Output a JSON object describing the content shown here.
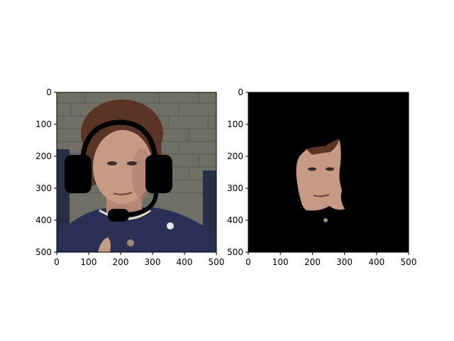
{
  "figure": {
    "background": "#ffffff",
    "panels": [
      {
        "id": "left",
        "content": "photo of a woman wearing a drawn headset overlay",
        "xticks": [
          "0",
          "100",
          "200",
          "300",
          "400",
          "500"
        ],
        "yticks": [
          "0",
          "100",
          "200",
          "300",
          "400",
          "500"
        ],
        "xlim": [
          0,
          500
        ],
        "ylim": [
          500,
          0
        ]
      },
      {
        "id": "right",
        "content": "segmented face region on black background",
        "xticks": [
          "0",
          "100",
          "200",
          "300",
          "400",
          "500"
        ],
        "yticks": [
          "0",
          "100",
          "200",
          "300",
          "400",
          "500"
        ],
        "xlim": [
          0,
          500
        ],
        "ylim": [
          500,
          0
        ]
      }
    ]
  },
  "colors": {
    "wall": "#6f6f66",
    "wall_line": "#5a5a52",
    "hair": "#5a3424",
    "skin": "#c79a86",
    "skin_shadow": "#a9786a",
    "suit": "#2c2f55",
    "headset": "#000000",
    "mask_bg": "#000000",
    "axis": "#000000"
  }
}
